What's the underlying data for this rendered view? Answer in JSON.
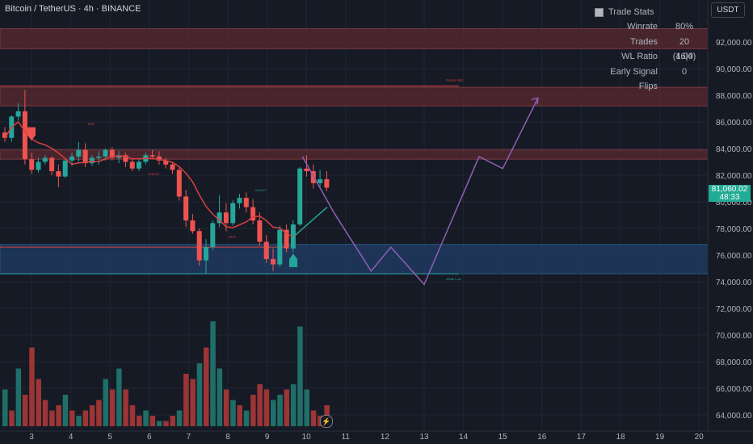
{
  "header": {
    "title": "Bitcoin / TetherUS · 4h · BINANCE"
  },
  "currency_button": "USDT",
  "trade_stats": {
    "title": "Trade Stats",
    "rows": [
      {
        "label": "Winrate",
        "value": "80%"
      },
      {
        "label": "Trades",
        "value": "20 (16|4)"
      },
      {
        "label": "WL Ratio",
        "value": "4.00"
      },
      {
        "label": "Early Signal Flips",
        "value": "0"
      }
    ]
  },
  "last_price": {
    "price": "81,060.02",
    "countdown": "48:33"
  },
  "colors": {
    "background": "#161a25",
    "bull": "#26a69a",
    "bear": "#ef5350",
    "zone_red": "#5a2a30",
    "zone_blue": "#1e3a5f",
    "projection": "#8e5fb5",
    "trend_line": "#d7403f"
  },
  "chart_data": {
    "type": "candlestick",
    "price_axis": {
      "min": 63000,
      "max": 93000,
      "ticks": [
        "92,000.00",
        "90,000.00",
        "88,000.00",
        "86,000.00",
        "84,000.00",
        "82,000.00",
        "80,000.00",
        "78,000.00",
        "76,000.00",
        "74,000.00",
        "72,000.00",
        "70,000.00",
        "68,000.00",
        "66,000.00",
        "64,000.00"
      ]
    },
    "time_axis": {
      "ticks": [
        "3",
        "4",
        "5",
        "6",
        "7",
        "8",
        "9",
        "10",
        "11",
        "12",
        "13",
        "14",
        "15",
        "16",
        "17",
        "18",
        "19",
        "20"
      ]
    },
    "candles": [
      [
        85200,
        85600,
        84500,
        84800
      ],
      [
        84800,
        86500,
        84500,
        86400
      ],
      [
        86400,
        87400,
        86100,
        86800
      ],
      [
        86800,
        88400,
        82800,
        83200
      ],
      [
        83200,
        83700,
        82100,
        82400
      ],
      [
        82400,
        83300,
        82200,
        83000
      ],
      [
        83000,
        83500,
        82800,
        83300
      ],
      [
        83300,
        83400,
        82000,
        82300
      ],
      [
        82300,
        82800,
        81100,
        81900
      ],
      [
        81900,
        83200,
        81800,
        83100
      ],
      [
        83100,
        83700,
        82700,
        83400
      ],
      [
        83400,
        84500,
        83000,
        83900
      ],
      [
        83900,
        84400,
        82600,
        82900
      ],
      [
        82900,
        83500,
        82700,
        83300
      ],
      [
        83300,
        83800,
        82800,
        83400
      ],
      [
        83400,
        84000,
        83100,
        83900
      ],
      [
        83900,
        84100,
        83100,
        83300
      ],
      [
        83300,
        83800,
        82900,
        83500
      ],
      [
        83500,
        83700,
        82600,
        83000
      ],
      [
        83000,
        83200,
        82300,
        82500
      ],
      [
        82500,
        83200,
        82300,
        83000
      ],
      [
        83000,
        83700,
        82800,
        83500
      ],
      [
        83500,
        83900,
        83200,
        83400
      ],
      [
        83400,
        83800,
        82800,
        83100
      ],
      [
        83100,
        83300,
        82500,
        82800
      ],
      [
        82800,
        83000,
        82100,
        82400
      ],
      [
        82400,
        82600,
        80100,
        80400
      ],
      [
        80400,
        80900,
        78100,
        78600
      ],
      [
        78600,
        79100,
        77600,
        77800
      ],
      [
        77800,
        78000,
        75200,
        75600
      ],
      [
        75600,
        77200,
        74600,
        76600
      ],
      [
        76600,
        78600,
        76400,
        78400
      ],
      [
        78400,
        80500,
        78100,
        79200
      ],
      [
        79200,
        79900,
        77800,
        78400
      ],
      [
        78400,
        80100,
        78200,
        79900
      ],
      [
        79900,
        80600,
        79500,
        80300
      ],
      [
        80300,
        80700,
        79200,
        79600
      ],
      [
        79600,
        80200,
        78300,
        78600
      ],
      [
        78600,
        79200,
        76700,
        77000
      ],
      [
        77000,
        77500,
        75400,
        75700
      ],
      [
        75700,
        76500,
        74800,
        75300
      ],
      [
        75300,
        78200,
        75100,
        77900
      ],
      [
        77900,
        78300,
        76200,
        76500
      ],
      [
        76500,
        78600,
        76200,
        78300
      ],
      [
        78300,
        82600,
        78200,
        82500
      ],
      [
        82500,
        83500,
        81900,
        82300
      ],
      [
        82300,
        82800,
        81000,
        81400
      ],
      [
        81400,
        82400,
        81100,
        81700
      ],
      [
        81700,
        82300,
        80800,
        81060
      ]
    ],
    "volume": [
      {
        "v": 0.35,
        "up": true
      },
      {
        "v": 0.15,
        "up": false
      },
      {
        "v": 0.55,
        "up": true
      },
      {
        "v": 0.3,
        "up": false
      },
      {
        "v": 0.75,
        "up": false
      },
      {
        "v": 0.45,
        "up": false
      },
      {
        "v": 0.25,
        "up": false
      },
      {
        "v": 0.15,
        "up": false
      },
      {
        "v": 0.2,
        "up": false
      },
      {
        "v": 0.3,
        "up": true
      },
      {
        "v": 0.15,
        "up": false
      },
      {
        "v": 0.1,
        "up": true
      },
      {
        "v": 0.15,
        "up": false
      },
      {
        "v": 0.2,
        "up": false
      },
      {
        "v": 0.25,
        "up": false
      },
      {
        "v": 0.45,
        "up": true
      },
      {
        "v": 0.35,
        "up": false
      },
      {
        "v": 0.55,
        "up": true
      },
      {
        "v": 0.35,
        "up": false
      },
      {
        "v": 0.2,
        "up": false
      },
      {
        "v": 0.1,
        "up": false
      },
      {
        "v": 0.15,
        "up": true
      },
      {
        "v": 0.1,
        "up": false
      },
      {
        "v": 0.05,
        "up": true
      },
      {
        "v": 0.05,
        "up": false
      },
      {
        "v": 0.1,
        "up": false
      },
      {
        "v": 0.15,
        "up": true
      },
      {
        "v": 0.5,
        "up": false
      },
      {
        "v": 0.45,
        "up": false
      },
      {
        "v": 0.6,
        "up": true
      },
      {
        "v": 0.75,
        "up": false
      },
      {
        "v": 1.0,
        "up": true
      },
      {
        "v": 0.55,
        "up": true
      },
      {
        "v": 0.35,
        "up": false
      },
      {
        "v": 0.25,
        "up": true
      },
      {
        "v": 0.2,
        "up": false
      },
      {
        "v": 0.15,
        "up": true
      },
      {
        "v": 0.3,
        "up": false
      },
      {
        "v": 0.4,
        "up": false
      },
      {
        "v": 0.35,
        "up": false
      },
      {
        "v": 0.25,
        "up": true
      },
      {
        "v": 0.3,
        "up": true
      },
      {
        "v": 0.35,
        "up": false
      },
      {
        "v": 0.4,
        "up": true
      },
      {
        "v": 0.95,
        "up": true
      },
      {
        "v": 0.35,
        "up": true
      },
      {
        "v": 0.15,
        "up": false
      },
      {
        "v": 0.1,
        "up": false
      },
      {
        "v": 0.2,
        "up": false
      }
    ],
    "zones": [
      {
        "from": 91500,
        "to": 93000,
        "color": "red"
      },
      {
        "from": 87200,
        "to": 88600,
        "color": "red"
      },
      {
        "from": 83200,
        "to": 83900,
        "color": "red"
      },
      {
        "from": 74600,
        "to": 76800,
        "color": "blue"
      }
    ],
    "level_lines": [
      {
        "price": 88700,
        "label": "Strong High"
      },
      {
        "price": 74600,
        "label": "Weak Low"
      }
    ],
    "structure_labels": [
      "EQH",
      "CHoCH",
      "BOS",
      "CHoCH"
    ],
    "projection_path": [
      [
        9.9,
        83400
      ],
      [
        10.7,
        79200
      ],
      [
        11.65,
        74800
      ],
      [
        12.15,
        76600
      ],
      [
        13.0,
        73800
      ],
      [
        14.4,
        83400
      ],
      [
        15.0,
        82500
      ],
      [
        15.9,
        87800
      ]
    ]
  }
}
